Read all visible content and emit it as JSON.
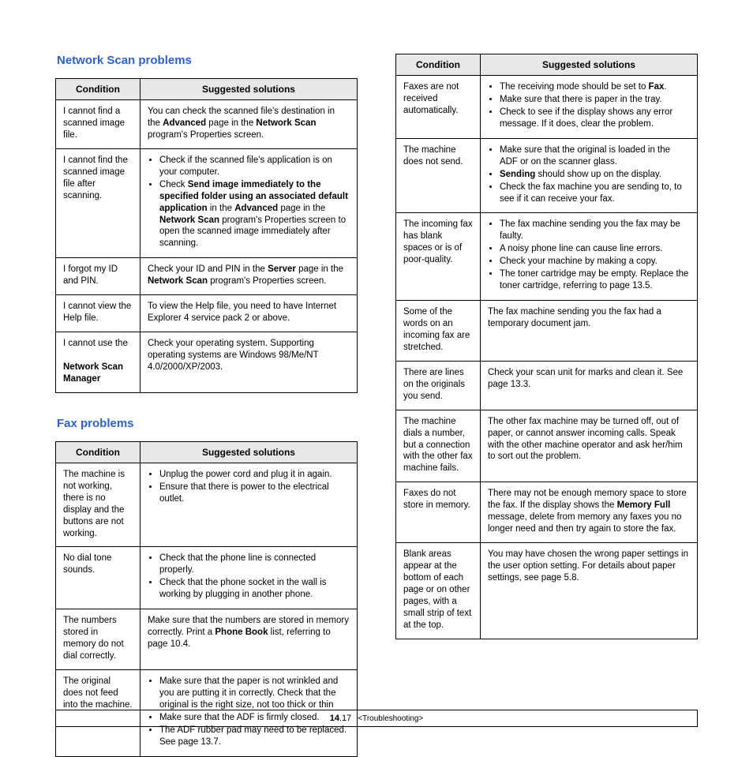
{
  "headings": {
    "networkScan": "Network Scan problems",
    "fax": "Fax problems"
  },
  "headers": {
    "condition": "Condition",
    "solutions": "Suggested solutions"
  },
  "networkScanRows": [
    {
      "cond": "I cannot find a scanned image file.",
      "sol": "You can check the scanned file's destination in the <b>Advanced</b> page in the <b>Network Scan</b> program's Properties screen."
    },
    {
      "cond": "I cannot find the scanned image file after scanning.",
      "sol": "<ul class='sol'><li>Check if the scanned file's application is on your computer.</li><li>Check <b>Send image immediately to the specified folder using an associated default application</b> in the <b>Advanced</b> page in the <b>Network Scan</b> program's Properties screen to open the scanned image immediately after scanning.</li></ul>"
    },
    {
      "cond": "I forgot my ID and PIN.",
      "sol": "Check your ID and PIN in the <b>Server</b> page in the <b>Network Scan</b> program's Properties screen."
    },
    {
      "cond": "I cannot view the Help file.",
      "sol": "To view the Help file, you need to have Internet Explorer 4 service pack 2 or above."
    },
    {
      "cond": "I cannot use the<br><br><b>Network Scan Manager</b>",
      "sol": "Check your operating system. Supporting operating systems are Windows 98/Me/NT 4.0/2000/XP/2003."
    }
  ],
  "faxLeftRows": [
    {
      "cond": "The machine is not working, there is no display and the buttons are not working.",
      "sol": "<ul class='sol'><li>Unplug the power cord and plug it in again.</li><li>Ensure that there is power to the electrical outlet.</li></ul>"
    },
    {
      "cond": "No dial tone sounds.",
      "sol": "<ul class='sol'><li>Check that the phone line is connected properly.</li><li>Check that the phone socket in the wall is working by plugging in another phone.</li></ul>"
    },
    {
      "cond": "The numbers stored in memory do not dial correctly.",
      "sol": "Make sure that the numbers are stored in memory correctly. Print a <b>Phone Book</b> list, referring to page 10.4."
    },
    {
      "cond": "The original does not feed into the machine.",
      "sol": "<ul class='sol'><li>Make sure that the paper is not wrinkled and you are putting it in correctly. Check that the original is the right size, not too thick or thin</li><li>Make sure that the ADF is firmly closed.</li><li>The ADF rubber pad may need to be replaced. See page 13.7.</li></ul>"
    }
  ],
  "faxRightRows": [
    {
      "cond": "Faxes are not received automatically.",
      "sol": "<ul class='sol'><li>The receiving mode should be set to <b>Fax</b>.</li><li>Make sure that there is paper in the tray.</li><li>Check to see if the display shows any error message. If it does, clear the problem.</li></ul>"
    },
    {
      "cond": "The machine does not send.",
      "sol": "<ul class='sol'><li>Make sure that the original is loaded in the ADF or on the scanner glass.</li><li><b>Sending</b> should show up on the display.</li><li>Check the fax machine you are sending to, to see if it can receive your fax.</li></ul>"
    },
    {
      "cond": "The incoming fax has blank spaces or is of poor-quality.",
      "sol": "<ul class='sol'><li>The fax machine sending you the fax may be faulty.</li><li>A noisy phone line can cause line errors.</li><li>Check your machine by making a copy.</li><li>The toner cartridge may be empty. Replace the toner cartridge, referring to page 13.5.</li></ul>"
    },
    {
      "cond": "Some of the words on an incoming fax are stretched.",
      "sol": "The fax machine sending you the fax had a temporary document jam."
    },
    {
      "cond": "There are lines on the originals you send.",
      "sol": "Check your scan unit for marks and clean it. See page 13.3."
    },
    {
      "cond": "The machine dials a number, but a connection with the other fax machine fails.",
      "sol": "The other fax machine may be turned off, out of paper, or cannot answer incoming calls. Speak with the other machine operator and ask her/him to sort out the problem."
    },
    {
      "cond": "Faxes do not store in memory.",
      "sol": "There may not be enough memory space to store the fax. If the display shows the <b>Memory Full</b> message, delete from memory any faxes you no longer need and then try again to store the fax."
    },
    {
      "cond": "Blank areas appear at the bottom of each page or on other pages, with a small strip of text at the top.",
      "sol": "You may have chosen the wrong paper settings in the user option setting. For details about paper settings, see page 5.8."
    }
  ],
  "footer": {
    "pageNumber": "14",
    "pageSub": ".17",
    "label": "<Troubleshooting>"
  }
}
